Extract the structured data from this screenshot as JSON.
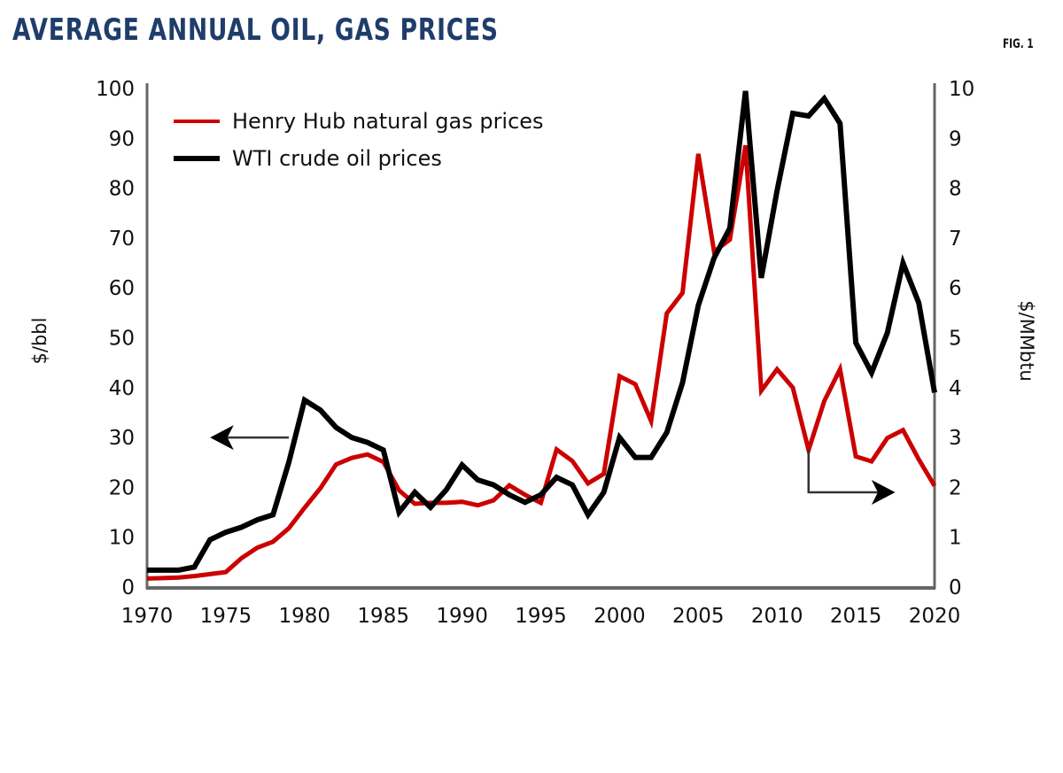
{
  "header": {
    "title": "AVERAGE ANNUAL OIL, GAS PRICES",
    "figure_label": "FIG. 1"
  },
  "chart_data": {
    "type": "line",
    "title": "AVERAGE ANNUAL OIL, GAS PRICES",
    "xlabel": "",
    "ylabel": "$/bbl",
    "y2label": "$/MMbtu",
    "xlim": [
      1970,
      2020
    ],
    "ylim": [
      0,
      100
    ],
    "y2lim": [
      0,
      10
    ],
    "x_ticks": [
      1970,
      1975,
      1980,
      1985,
      1990,
      1995,
      2000,
      2005,
      2010,
      2015,
      2020
    ],
    "y_ticks": [
      0,
      10,
      20,
      30,
      40,
      50,
      60,
      70,
      80,
      90,
      100
    ],
    "y2_ticks": [
      0,
      1,
      2,
      3,
      4,
      5,
      6,
      7,
      8,
      9,
      10
    ],
    "grid": false,
    "legend_position": "top-left",
    "colors": {
      "gas": "#cc0000",
      "oil": "#000000",
      "axis": "#666666",
      "title": "#1f3d6b"
    },
    "x": [
      1970,
      1971,
      1972,
      1973,
      1974,
      1975,
      1976,
      1977,
      1978,
      1979,
      1980,
      1981,
      1982,
      1983,
      1984,
      1985,
      1986,
      1987,
      1988,
      1989,
      1990,
      1991,
      1992,
      1993,
      1994,
      1995,
      1996,
      1997,
      1998,
      1999,
      2000,
      2001,
      2002,
      2003,
      2004,
      2005,
      2006,
      2007,
      2008,
      2009,
      2010,
      2011,
      2012,
      2013,
      2014,
      2015,
      2016,
      2017,
      2018,
      2019,
      2020
    ],
    "series": [
      {
        "name": "Henry Hub natural gas prices",
        "axis": "right",
        "units": "$/MMbtu",
        "color": "#cc0000",
        "values": [
          0.17,
          0.18,
          0.19,
          0.22,
          0.26,
          0.3,
          0.58,
          0.79,
          0.91,
          1.18,
          1.59,
          1.98,
          2.46,
          2.59,
          2.66,
          2.51,
          1.94,
          1.67,
          1.69,
          1.69,
          1.71,
          1.64,
          1.74,
          2.04,
          1.85,
          1.69,
          2.76,
          2.53,
          2.08,
          2.27,
          4.23,
          4.07,
          3.33,
          5.49,
          5.9,
          8.69,
          6.73,
          6.97,
          8.86,
          3.94,
          4.37,
          4.0,
          2.75,
          3.73,
          4.37,
          2.62,
          2.52,
          2.99,
          3.15,
          2.56,
          2.03
        ]
      },
      {
        "name": "WTI crude oil prices",
        "axis": "left",
        "units": "$/bbl",
        "color": "#000000",
        "values": [
          3.4,
          3.4,
          3.4,
          4.0,
          9.5,
          11.0,
          12.0,
          13.5,
          14.5,
          25.0,
          37.5,
          35.5,
          32.0,
          30.0,
          29.0,
          27.5,
          15.0,
          19.0,
          16.0,
          19.5,
          24.5,
          21.5,
          20.5,
          18.5,
          17.0,
          18.5,
          22.0,
          20.5,
          14.5,
          19.0,
          30.0,
          26.0,
          26.0,
          31.0,
          41.0,
          56.5,
          66.0,
          72.0,
          99.5,
          62.0,
          79.5,
          95.0,
          94.5,
          98.0,
          93.0,
          49.0,
          43.0,
          51.0,
          65.0,
          57.0,
          39.0
        ]
      }
    ],
    "annotations": [
      {
        "type": "arrow",
        "direction": "left",
        "meaning": "WTI series reads on left axis"
      },
      {
        "type": "arrow",
        "direction": "right",
        "meaning": "Henry Hub series reads on right axis"
      }
    ]
  }
}
